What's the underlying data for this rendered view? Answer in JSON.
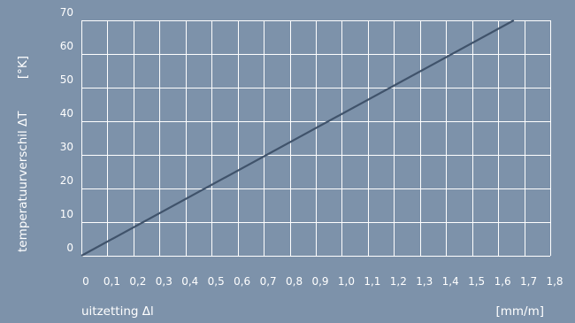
{
  "chart_data": {
    "type": "line",
    "xlabel": "uitzetting Δl",
    "xunit": "[mm/m]",
    "ylabel": "temperatuurverschil ΔT",
    "yunit": "[°K]",
    "xlim": [
      0,
      1.8
    ],
    "ylim": [
      0,
      70
    ],
    "grid": true,
    "x_ticks": [
      "0",
      "0,1",
      "0,2",
      "0,3",
      "0,4",
      "0,5",
      "0,6",
      "0,7",
      "0,8",
      "0,9",
      "1,0",
      "1,1",
      "1,2",
      "1,3",
      "1,4",
      "1,5",
      "1,6",
      "1,7",
      "1,8"
    ],
    "y_ticks": [
      "0",
      "10",
      "20",
      "30",
      "40",
      "50",
      "60",
      "70"
    ],
    "series": [
      {
        "x": [
          0,
          1.66
        ],
        "y": [
          0,
          70
        ]
      }
    ]
  },
  "colors": {
    "background": "#7d92aa",
    "grid": "#ffffff",
    "line": "#40536b",
    "text": "#ffffff"
  }
}
